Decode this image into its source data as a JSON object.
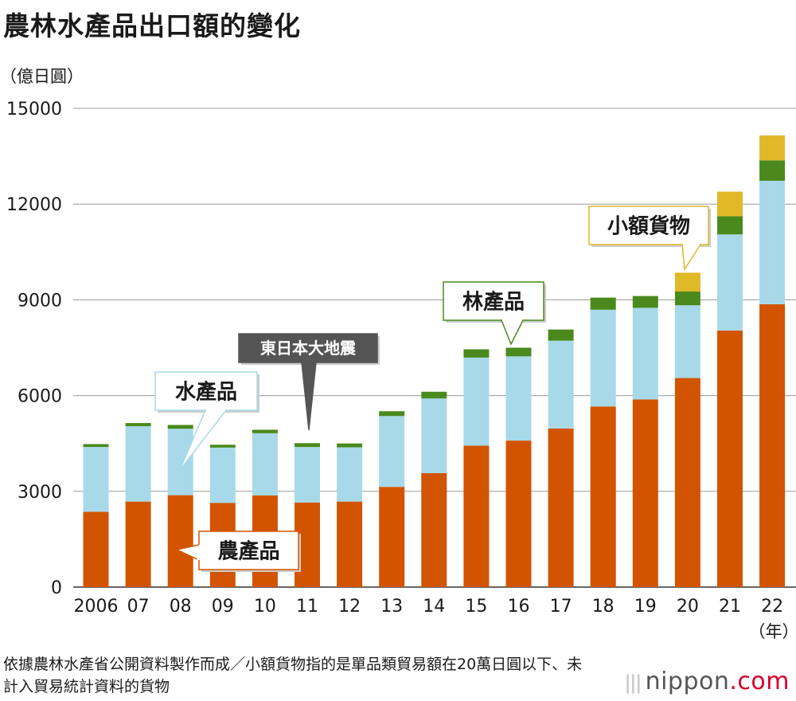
{
  "title": "農林水產品出口額的變化",
  "unit_label": "（億日圓）",
  "x_unit_label": "（年）",
  "footnote": "依據農林水產省公開資料製作而成／小額貨物指的是單品類貿易額在20萬日圓以下、未計入貿易統計資料的貨物",
  "brand": {
    "name": "nippon",
    "suffix": ".com"
  },
  "colors": {
    "agri": "#d35400",
    "fish": "#a8d9e9",
    "forest": "#4a8a1d",
    "small": "#e0b929",
    "grid": "#9a9a9a",
    "event_box": "#555555"
  },
  "chart_data": {
    "type": "bar",
    "stacked": true,
    "categories": [
      "2006",
      "07",
      "08",
      "09",
      "10",
      "11",
      "12",
      "13",
      "14",
      "15",
      "16",
      "17",
      "18",
      "19",
      "20",
      "21",
      "22"
    ],
    "series": [
      {
        "key": "agri",
        "name": "農產品",
        "values": [
          2360,
          2680,
          2880,
          2640,
          2870,
          2650,
          2680,
          3140,
          3570,
          4430,
          4590,
          4970,
          5660,
          5880,
          6550,
          8040,
          8860
        ]
      },
      {
        "key": "fish",
        "name": "水產品",
        "values": [
          2030,
          2360,
          2080,
          1730,
          1950,
          1740,
          1700,
          2220,
          2340,
          2760,
          2640,
          2750,
          3030,
          2870,
          2280,
          3010,
          3870
        ]
      },
      {
        "key": "forest",
        "name": "林產品",
        "values": [
          90,
          100,
          120,
          90,
          110,
          120,
          120,
          150,
          210,
          260,
          270,
          350,
          380,
          370,
          430,
          570,
          640
        ]
      },
      {
        "key": "small",
        "name": "小額貨物",
        "values": [
          0,
          0,
          0,
          0,
          0,
          0,
          0,
          0,
          0,
          0,
          0,
          0,
          0,
          0,
          590,
          770,
          780
        ]
      }
    ],
    "ylim": [
      0,
      15000
    ],
    "yticks": [
      0,
      3000,
      6000,
      9000,
      12000,
      15000
    ],
    "grid": true,
    "annotations": [
      {
        "text": "東日本大地震",
        "category": "11"
      }
    ]
  }
}
